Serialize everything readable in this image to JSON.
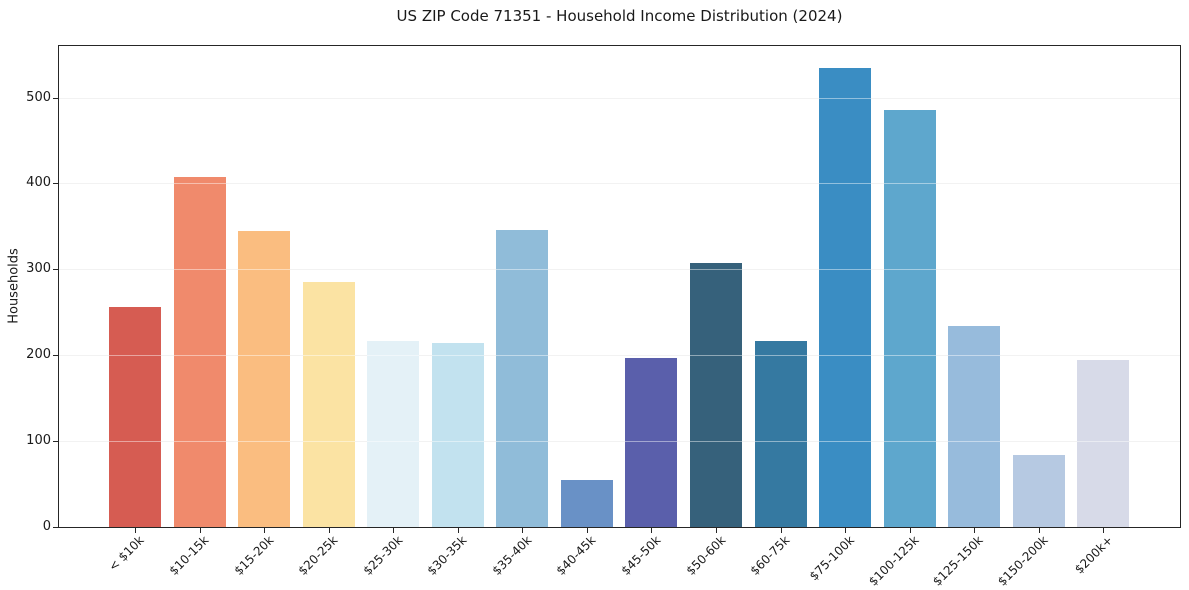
{
  "chart_data": {
    "type": "bar",
    "title": "US ZIP Code 71351 - Household Income Distribution (2024)",
    "xlabel": "",
    "ylabel": "Households",
    "ylim": [
      0,
      560
    ],
    "yticks": [
      0,
      100,
      200,
      300,
      400,
      500
    ],
    "grid": "horizontal-light-gray",
    "legend": "none",
    "categories": [
      "< $10k",
      "$10-15k",
      "$15-20k",
      "$20-25k",
      "$25-30k",
      "$30-35k",
      "$35-40k",
      "$40-45k",
      "$45-50k",
      "$50-60k",
      "$60-75k",
      "$75-100k",
      "$100-125k",
      "$125-150k",
      "$150-200k",
      "$200k+"
    ],
    "values": [
      256,
      407,
      345,
      285,
      216,
      214,
      346,
      55,
      197,
      307,
      217,
      534,
      486,
      234,
      84,
      194
    ],
    "bar_colors": [
      "#d65c52",
      "#f08a6c",
      "#fabd80",
      "#fbe3a3",
      "#e4f1f7",
      "#c2e2ef",
      "#90bcd9",
      "#6991c6",
      "#5a5fab",
      "#36617b",
      "#3579a1",
      "#3a8dc3",
      "#5ea7cd",
      "#97bbdc",
      "#b6c9e2",
      "#d7dae8"
    ],
    "axis_color": "#262626",
    "background_color": "#ffffff"
  }
}
